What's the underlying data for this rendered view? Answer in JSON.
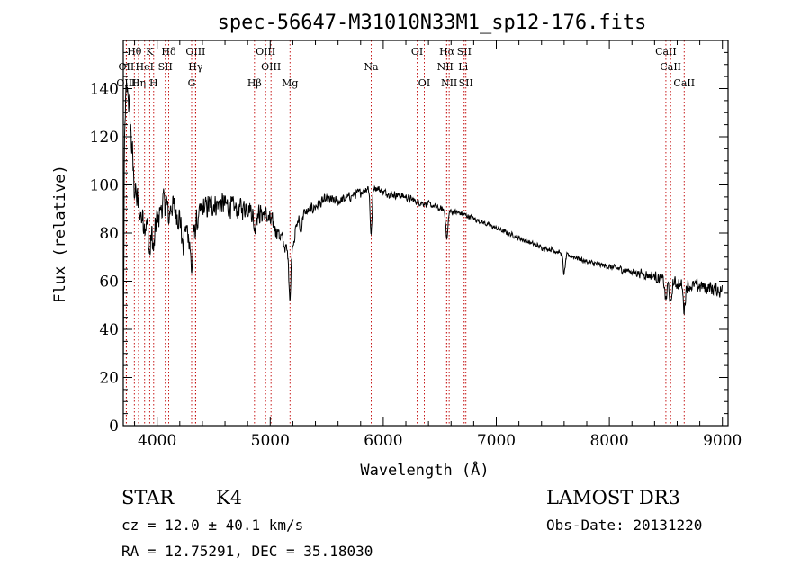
{
  "chart_data": {
    "type": "line",
    "title": "spec-56647-M31010N33M1_sp12-176.fits",
    "xlabel": "Wavelength (Å)",
    "ylabel": "Flux (relative)",
    "xlim": [
      3700,
      9050
    ],
    "ylim": [
      0,
      160
    ],
    "xticks": [
      4000,
      5000,
      6000,
      7000,
      8000,
      9000
    ],
    "yticks": [
      0,
      20,
      40,
      60,
      80,
      100,
      120,
      140
    ],
    "continuum": [
      [
        3700,
        20
      ],
      [
        3705,
        70
      ],
      [
        3710,
        110
      ],
      [
        3720,
        135
      ],
      [
        3740,
        140
      ],
      [
        3760,
        128
      ],
      [
        3780,
        112
      ],
      [
        3800,
        98
      ],
      [
        3850,
        88
      ],
      [
        3900,
        84
      ],
      [
        3970,
        82
      ],
      [
        4050,
        92
      ],
      [
        4100,
        94
      ],
      [
        4200,
        86
      ],
      [
        4300,
        78
      ],
      [
        4400,
        90
      ],
      [
        4500,
        92
      ],
      [
        4600,
        92
      ],
      [
        4700,
        90
      ],
      [
        4800,
        91
      ],
      [
        4860,
        88
      ],
      [
        4950,
        88
      ],
      [
        5050,
        82
      ],
      [
        5100,
        78
      ],
      [
        5150,
        72
      ],
      [
        5200,
        76
      ],
      [
        5250,
        86
      ],
      [
        5300,
        88
      ],
      [
        5400,
        91
      ],
      [
        5500,
        94
      ],
      [
        5600,
        93
      ],
      [
        5700,
        95
      ],
      [
        5800,
        97
      ],
      [
        5900,
        100
      ],
      [
        6000,
        97
      ],
      [
        6100,
        96
      ],
      [
        6200,
        95
      ],
      [
        6300,
        93
      ],
      [
        6400,
        92
      ],
      [
        6500,
        90
      ],
      [
        6600,
        89
      ],
      [
        6700,
        88
      ],
      [
        6800,
        86
      ],
      [
        6900,
        84
      ],
      [
        7000,
        82
      ],
      [
        7100,
        80
      ],
      [
        7200,
        78
      ],
      [
        7300,
        76
      ],
      [
        7400,
        74
      ],
      [
        7500,
        73
      ],
      [
        7600,
        71
      ],
      [
        7700,
        70
      ],
      [
        7800,
        68
      ],
      [
        7900,
        67
      ],
      [
        8000,
        66
      ],
      [
        8100,
        65
      ],
      [
        8200,
        64
      ],
      [
        8300,
        63
      ],
      [
        8400,
        62
      ],
      [
        8500,
        60
      ],
      [
        8600,
        59
      ],
      [
        8700,
        58
      ],
      [
        8800,
        58
      ],
      [
        8900,
        57
      ],
      [
        9000,
        56
      ]
    ],
    "absorption_features": [
      [
        3934,
        12
      ],
      [
        3969,
        10
      ],
      [
        4102,
        8
      ],
      [
        4227,
        10
      ],
      [
        4305,
        14
      ],
      [
        4861,
        6
      ],
      [
        5175,
        20
      ],
      [
        5270,
        6
      ],
      [
        5893,
        20
      ],
      [
        6563,
        12
      ],
      [
        7600,
        8
      ],
      [
        8500,
        8
      ],
      [
        8542,
        10
      ],
      [
        8662,
        10
      ]
    ],
    "noise": [
      [
        3700,
        9
      ],
      [
        4500,
        6
      ],
      [
        5000,
        5
      ],
      [
        5300,
        3
      ],
      [
        6000,
        2
      ],
      [
        7000,
        1.2
      ],
      [
        8000,
        1.5
      ],
      [
        8500,
        3
      ],
      [
        9000,
        4
      ]
    ],
    "spectral_lines": [
      {
        "label": "OII",
        "wave": 3727,
        "row": 2
      },
      {
        "label": "Hθ",
        "wave": 3798,
        "row": 1
      },
      {
        "label": "OIII",
        "wave": 3727,
        "row": 3
      },
      {
        "label": "Hη",
        "wave": 3835,
        "row": 3
      },
      {
        "label": "HeI",
        "wave": 3889,
        "row": 2
      },
      {
        "label": "K",
        "wave": 3934,
        "row": 1
      },
      {
        "label": "H",
        "wave": 3969,
        "row": 3
      },
      {
        "label": "SII",
        "wave": 4072,
        "row": 2
      },
      {
        "label": "Hδ",
        "wave": 4102,
        "row": 1
      },
      {
        "label": "G",
        "wave": 4305,
        "row": 3
      },
      {
        "label": "OIII",
        "wave": 4340,
        "row": 1
      },
      {
        "label": "Hγ",
        "wave": 4340,
        "row": 2
      },
      {
        "label": "Hβ",
        "wave": 4861,
        "row": 3
      },
      {
        "label": "OIII",
        "wave": 4959,
        "row": 1
      },
      {
        "label": "OIII",
        "wave": 5007,
        "row": 2
      },
      {
        "label": "Mg",
        "wave": 5175,
        "row": 3
      },
      {
        "label": "Na",
        "wave": 5893,
        "row": 2
      },
      {
        "label": "OI",
        "wave": 6300,
        "row": 1
      },
      {
        "label": "OI",
        "wave": 6363,
        "row": 3
      },
      {
        "label": "Hα",
        "wave": 6563,
        "row": 1
      },
      {
        "label": "NII",
        "wave": 6548,
        "row": 2
      },
      {
        "label": "NII",
        "wave": 6583,
        "row": 3
      },
      {
        "label": "SII",
        "wave": 6716,
        "row": 1
      },
      {
        "label": "Li",
        "wave": 6707,
        "row": 2
      },
      {
        "label": "SII",
        "wave": 6731,
        "row": 3
      },
      {
        "label": "CaII",
        "wave": 8500,
        "row": 1
      },
      {
        "label": "CaII",
        "wave": 8542,
        "row": 2
      },
      {
        "label": "CaII",
        "wave": 8662,
        "row": 3
      }
    ]
  },
  "info": {
    "class": "STAR",
    "subclass": "K4",
    "survey": "LAMOST DR3",
    "cz": "cz = 12.0 ± 40.1 km/s",
    "obs_date": "Obs-Date: 20131220",
    "radec": "RA =  12.75291, DEC =  35.18030"
  }
}
